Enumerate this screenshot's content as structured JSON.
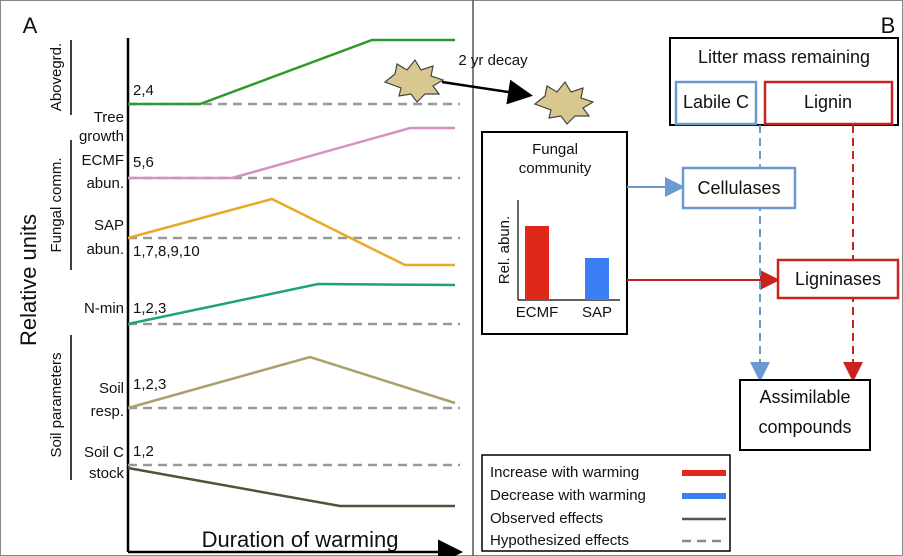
{
  "panel_a": {
    "label": "A",
    "y_axis_title": "Relative units",
    "x_axis_title": "Duration of warming",
    "groups": [
      "Abovegrd.",
      "Fungal comm.",
      "Soil parameters"
    ],
    "rows": [
      {
        "label": [
          "Tree",
          "growth"
        ],
        "refs": "2,4"
      },
      {
        "label": [
          "ECMF",
          "abun."
        ],
        "refs": "5,6"
      },
      {
        "label": [
          "SAP",
          "abun."
        ],
        "refs": "1,7,8,9,10"
      },
      {
        "label": [
          "N-min"
        ],
        "refs": "1,2,3"
      },
      {
        "label": [
          "Soil",
          "resp."
        ],
        "refs": "1,2,3"
      },
      {
        "label": [
          "Soil C",
          "stock"
        ],
        "refs": "1,2"
      }
    ],
    "annotation": "2 yr decay"
  },
  "panel_b": {
    "label": "B",
    "litter_title": "Litter mass remaining",
    "litter_parts": [
      "Labile C",
      "Lignin"
    ],
    "fungal_title": [
      "Fungal",
      "community"
    ],
    "rel_abun": "Rel. abun.",
    "bar_labels": [
      "ECMF",
      "SAP"
    ],
    "enzymes": [
      "Cellulases",
      "Ligninases"
    ],
    "product": [
      "Assimilable",
      "compounds"
    ],
    "legend": [
      "Increase with warming",
      "Decrease with warming",
      "Observed effects",
      "Hypothesized effects"
    ]
  }
}
